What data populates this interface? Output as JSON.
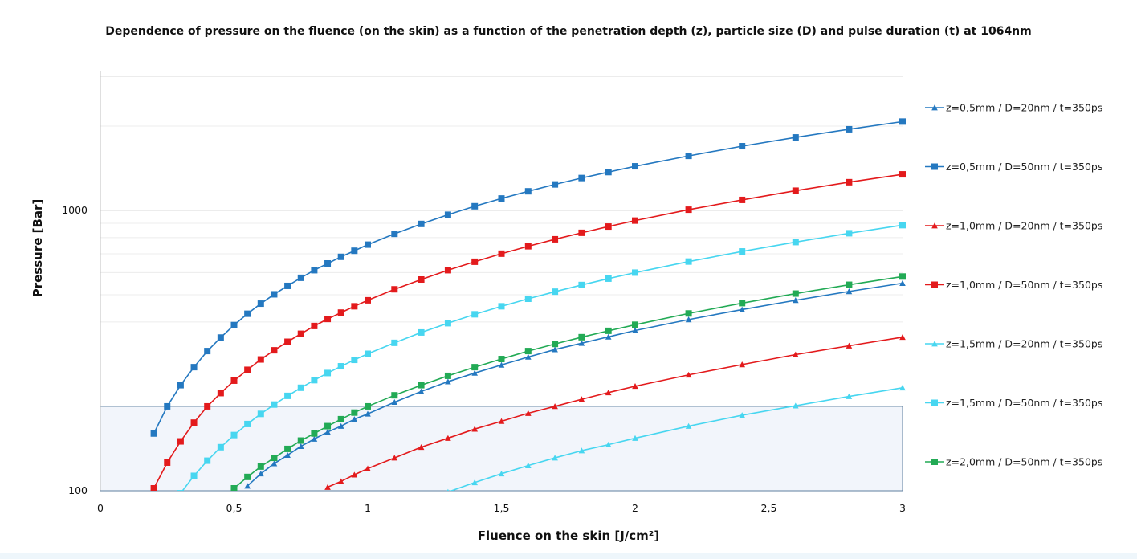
{
  "chart_data": {
    "type": "line",
    "title": "Dependence of pressure on the fluence (on the skin) as a function of the penetration depth (z), particle size (D) and pulse duration (t) at 1064nm",
    "xlabel": "Fluence on the skin [J/cm²]",
    "ylabel": "Pressure [Bar]",
    "xlim": [
      0,
      3
    ],
    "ylim": [
      100,
      3000
    ],
    "yscale": "log",
    "x_ticks": [
      0,
      0.5,
      1,
      1.5,
      2,
      2.5,
      3
    ],
    "x_tick_labels": [
      "0",
      "0,5",
      "1",
      "1,5",
      "2",
      "2,5",
      "3"
    ],
    "y_ticks": [
      100,
      1000
    ],
    "y_tick_labels": [
      "100",
      "1000"
    ],
    "legend_position": "right",
    "grid": true,
    "highlight_band": {
      "x": [
        0,
        3
      ],
      "y": [
        100,
        200
      ]
    },
    "series": [
      {
        "name": "z=0,5mm /  D=20nm / t=350ps",
        "color": "#2478c0",
        "marker": "triangle",
        "x": [
          0.55,
          0.6,
          0.65,
          0.7,
          0.75,
          0.8,
          0.85,
          0.9,
          0.95,
          1.0,
          1.1,
          1.2,
          1.3,
          1.4,
          1.5,
          1.6,
          1.7,
          1.8,
          1.9,
          2.0,
          2.2,
          2.4,
          2.6,
          2.8,
          3.0
        ],
        "y": [
          104,
          115,
          125,
          134,
          144,
          153,
          162,
          170,
          180,
          188,
          207,
          226,
          245,
          263,
          281,
          300,
          319,
          336,
          354,
          373,
          408,
          443,
          478,
          514,
          550
        ]
      },
      {
        "name": "z=0,5mm /  D=50nm / t=350ps",
        "color": "#2478c0",
        "marker": "square",
        "x": [
          0.2,
          0.25,
          0.3,
          0.35,
          0.4,
          0.45,
          0.5,
          0.55,
          0.6,
          0.65,
          0.7,
          0.75,
          0.8,
          0.85,
          0.9,
          0.95,
          1.0,
          1.1,
          1.2,
          1.3,
          1.4,
          1.5,
          1.6,
          1.7,
          1.8,
          1.9,
          2.0,
          2.2,
          2.4,
          2.6,
          2.8,
          3.0
        ],
        "y": [
          160,
          200,
          238,
          276,
          315,
          352,
          390,
          428,
          465,
          502,
          538,
          575,
          612,
          647,
          683,
          718,
          755,
          825,
          895,
          965,
          1035,
          1103,
          1170,
          1238,
          1305,
          1370,
          1437,
          1565,
          1695,
          1822,
          1948,
          2075
        ]
      },
      {
        "name": "z=1,0mm /  D=20nm / t=350ps",
        "color": "#e31a1c",
        "marker": "triangle",
        "x": [
          0.85,
          0.9,
          0.95,
          1.0,
          1.1,
          1.2,
          1.3,
          1.4,
          1.5,
          1.6,
          1.7,
          1.8,
          1.9,
          2.0,
          2.2,
          2.4,
          2.6,
          2.8,
          3.0
        ],
        "y": [
          103,
          108,
          114,
          120,
          131,
          143,
          154,
          166,
          177,
          189,
          200,
          212,
          224,
          236,
          259,
          282,
          306,
          329,
          353
        ]
      },
      {
        "name": "z=1,0mm /  D=50nm / t=350ps",
        "color": "#e31a1c",
        "marker": "square",
        "x": [
          0.2,
          0.25,
          0.3,
          0.35,
          0.4,
          0.45,
          0.5,
          0.55,
          0.6,
          0.65,
          0.7,
          0.75,
          0.8,
          0.85,
          0.9,
          0.95,
          1.0,
          1.1,
          1.2,
          1.3,
          1.4,
          1.5,
          1.6,
          1.7,
          1.8,
          1.9,
          2.0,
          2.2,
          2.4,
          2.6,
          2.8,
          3.0
        ],
        "y": [
          102,
          126,
          150,
          175,
          200,
          223,
          247,
          270,
          294,
          317,
          340,
          363,
          387,
          410,
          432,
          455,
          478,
          523,
          567,
          612,
          656,
          701,
          745,
          789,
          832,
          876,
          920,
          1006,
          1090,
          1176,
          1261,
          1345
        ]
      },
      {
        "name": "z=1,5mm /  D=20nm / t=350ps",
        "color": "#47d6f0",
        "marker": "triangle",
        "x": [
          1.3,
          1.4,
          1.5,
          1.6,
          1.7,
          1.8,
          1.9,
          2.0,
          2.2,
          2.4,
          2.6,
          2.8,
          3.0
        ],
        "y": [
          99,
          107,
          115,
          123,
          131,
          139,
          146,
          154,
          170,
          186,
          201,
          217,
          233
        ]
      },
      {
        "name": "z=1,5mm /  D=50nm / t=350ps",
        "color": "#47d6f0",
        "marker": "square",
        "x": [
          0.3,
          0.35,
          0.4,
          0.45,
          0.5,
          0.55,
          0.6,
          0.65,
          0.7,
          0.75,
          0.8,
          0.85,
          0.9,
          0.95,
          1.0,
          1.1,
          1.2,
          1.3,
          1.4,
          1.5,
          1.6,
          1.7,
          1.8,
          1.9,
          2.0,
          2.2,
          2.4,
          2.6,
          2.8,
          3.0
        ],
        "y": [
          98,
          113,
          128,
          143,
          158,
          173,
          188,
          203,
          218,
          233,
          248,
          263,
          278,
          293,
          308,
          337,
          367,
          396,
          426,
          455,
          484,
          513,
          542,
          571,
          600,
          657,
          714,
          771,
          829,
          886
        ]
      },
      {
        "name": "z=2,0mm /  D=50nm / t=350ps",
        "color": "#22aa55",
        "marker": "square",
        "x": [
          0.5,
          0.55,
          0.6,
          0.65,
          0.7,
          0.75,
          0.8,
          0.85,
          0.9,
          0.95,
          1.0,
          1.1,
          1.2,
          1.3,
          1.4,
          1.5,
          1.6,
          1.7,
          1.8,
          1.9,
          2.0,
          2.2,
          2.4,
          2.6,
          2.8,
          3.0
        ],
        "y": [
          102,
          112,
          122,
          131,
          141,
          151,
          160,
          170,
          180,
          190,
          200,
          219,
          238,
          257,
          276,
          295,
          315,
          334,
          353,
          372,
          391,
          429,
          467,
          505,
          543,
          581
        ]
      }
    ]
  }
}
